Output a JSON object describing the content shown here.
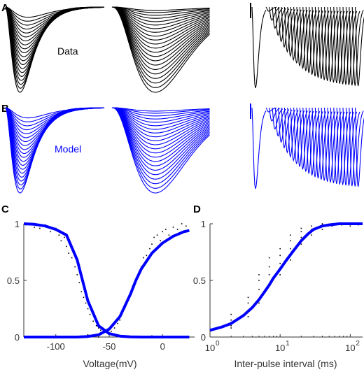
{
  "panel_labels": [
    "A",
    "B",
    "C",
    "D"
  ],
  "colors": {
    "data": "#000000",
    "model": "#0000ff",
    "axis": "#333333"
  },
  "chart_data": [
    {
      "type": "line",
      "panel": "A",
      "annotation": "Data",
      "description_series": [
        {
          "protocol": "activation",
          "min_peak": -0.12,
          "max_peak": -1.0,
          "traces": 20
        },
        {
          "protocol": "inactivation",
          "min_peak": -0.04,
          "max_peak": -1.0,
          "traces": 22
        },
        {
          "protocol": "recovery",
          "pulses": 30,
          "first_peak": -1.0,
          "second_peak_min": -0.05,
          "second_peak_max": -0.95
        }
      ]
    },
    {
      "type": "line",
      "panel": "B",
      "annotation": "Model",
      "description_series": [
        {
          "protocol": "activation",
          "min_peak": -0.12,
          "max_peak": -1.0,
          "traces": 20
        },
        {
          "protocol": "inactivation",
          "min_peak": -0.04,
          "max_peak": -1.0,
          "traces": 22
        },
        {
          "protocol": "recovery",
          "pulses": 30,
          "first_peak": -1.0,
          "second_peak_min": -0.05,
          "second_peak_max": -0.95
        }
      ]
    },
    {
      "type": "scatter",
      "panel": "C",
      "xlabel": "Voltage(mV)",
      "ylabel": "",
      "xlim": [
        -130,
        30
      ],
      "ylim": [
        0,
        1
      ],
      "xticks": [
        -100,
        -50,
        0
      ],
      "xtick_labels": [
        "-100",
        "-50",
        "0"
      ],
      "yticks": [
        0,
        0.5,
        1
      ],
      "ytick_labels": [
        "0",
        "0.5",
        "1"
      ],
      "fit_curves": [
        {
          "kind": "inactivation",
          "v_half": -75,
          "slope": 6.5,
          "x": [
            -130,
            -120,
            -110,
            -100,
            -90,
            -80,
            -75,
            -70,
            -60,
            -50,
            -40,
            -30,
            -20,
            -10,
            0,
            10,
            20,
            25
          ],
          "y": [
            1.0,
            0.995,
            0.98,
            0.95,
            0.9,
            0.68,
            0.5,
            0.32,
            0.1,
            0.03,
            0.008,
            0.002,
            0.0,
            0.0,
            0.0,
            0.0,
            0.0,
            0.0
          ]
        },
        {
          "kind": "activation",
          "v_half": -25,
          "slope": 10,
          "x": [
            -130,
            -100,
            -80,
            -70,
            -60,
            -50,
            -40,
            -30,
            -25,
            -20,
            -10,
            0,
            10,
            20,
            25
          ],
          "y": [
            0.0,
            0.0,
            0.0,
            0.005,
            0.02,
            0.07,
            0.18,
            0.38,
            0.5,
            0.6,
            0.74,
            0.83,
            0.89,
            0.93,
            0.94
          ]
        }
      ],
      "scatter_points": [
        {
          "x": -128,
          "y": 0.99
        },
        {
          "x": -125,
          "y": 1.0
        },
        {
          "x": -120,
          "y": 0.97
        },
        {
          "x": -115,
          "y": 0.96
        },
        {
          "x": -110,
          "y": 0.99
        },
        {
          "x": -105,
          "y": 0.93
        },
        {
          "x": -100,
          "y": 0.96
        },
        {
          "x": -97,
          "y": 0.9
        },
        {
          "x": -95,
          "y": 0.85
        },
        {
          "x": -92,
          "y": 0.88
        },
        {
          "x": -90,
          "y": 0.8
        },
        {
          "x": -88,
          "y": 0.74
        },
        {
          "x": -85,
          "y": 0.7
        },
        {
          "x": -82,
          "y": 0.62
        },
        {
          "x": -80,
          "y": 0.55
        },
        {
          "x": -78,
          "y": 0.48
        },
        {
          "x": -76,
          "y": 0.4
        },
        {
          "x": -74,
          "y": 0.35
        },
        {
          "x": -72,
          "y": 0.3
        },
        {
          "x": -70,
          "y": 0.25
        },
        {
          "x": -68,
          "y": 0.2
        },
        {
          "x": -65,
          "y": 0.14
        },
        {
          "x": -62,
          "y": 0.1
        },
        {
          "x": -60,
          "y": 0.08
        },
        {
          "x": -58,
          "y": 0.06
        },
        {
          "x": -55,
          "y": 0.05
        },
        {
          "x": -52,
          "y": 0.04
        },
        {
          "x": -50,
          "y": 0.03
        },
        {
          "x": -48,
          "y": 0.05
        },
        {
          "x": -45,
          "y": 0.08
        },
        {
          "x": -42,
          "y": 0.12
        },
        {
          "x": -40,
          "y": 0.15
        },
        {
          "x": -38,
          "y": 0.2
        },
        {
          "x": -35,
          "y": 0.26
        },
        {
          "x": -32,
          "y": 0.33
        },
        {
          "x": -30,
          "y": 0.38
        },
        {
          "x": -28,
          "y": 0.45
        },
        {
          "x": -25,
          "y": 0.5
        },
        {
          "x": -22,
          "y": 0.58
        },
        {
          "x": -20,
          "y": 0.62
        },
        {
          "x": -18,
          "y": 0.7
        },
        {
          "x": -15,
          "y": 0.72
        },
        {
          "x": -12,
          "y": 0.78
        },
        {
          "x": -10,
          "y": 0.82
        },
        {
          "x": -8,
          "y": 0.88
        },
        {
          "x": -5,
          "y": 0.9
        },
        {
          "x": -2,
          "y": 0.85
        },
        {
          "x": 0,
          "y": 0.93
        },
        {
          "x": 3,
          "y": 0.95
        },
        {
          "x": 6,
          "y": 0.9
        },
        {
          "x": 10,
          "y": 0.97
        },
        {
          "x": 14,
          "y": 0.95
        },
        {
          "x": 18,
          "y": 1.0
        },
        {
          "x": 22,
          "y": 0.98
        },
        {
          "x": -70,
          "y": 0.02
        },
        {
          "x": -60,
          "y": 0.0
        },
        {
          "x": -40,
          "y": 0.01
        },
        {
          "x": -30,
          "y": 0.0
        },
        {
          "x": -20,
          "y": 0.0
        },
        {
          "x": -10,
          "y": 0.01
        }
      ],
      "grid": false
    },
    {
      "type": "scatter",
      "panel": "D",
      "xlabel": "Inter-pulse interval (ms)",
      "ylabel": "",
      "xscale": "log",
      "xlim": [
        1,
        150
      ],
      "ylim": [
        0,
        1
      ],
      "xticks": [
        1,
        10,
        100
      ],
      "xtick_labels": [
        "10",
        "10",
        "10"
      ],
      "xtick_exponents": [
        "0",
        "1",
        "2"
      ],
      "yticks": [
        0,
        0.5,
        1
      ],
      "ytick_labels": [
        "0",
        "0.5",
        "1"
      ],
      "fit_curve": {
        "x": [
          1,
          1.5,
          2,
          3,
          4,
          5,
          6,
          7,
          8,
          10,
          12,
          15,
          20,
          25,
          30,
          40,
          50,
          70,
          100,
          150
        ],
        "y": [
          0.06,
          0.09,
          0.12,
          0.19,
          0.26,
          0.33,
          0.4,
          0.46,
          0.52,
          0.6,
          0.67,
          0.75,
          0.85,
          0.91,
          0.95,
          0.98,
          0.99,
          1.0,
          1.0,
          1.0
        ]
      },
      "scatter_points": [
        {
          "x": 2,
          "y": 0.1
        },
        {
          "x": 2,
          "y": 0.15
        },
        {
          "x": 2,
          "y": 0.2
        },
        {
          "x": 2,
          "y": 0.08
        },
        {
          "x": 3.5,
          "y": 0.22
        },
        {
          "x": 3.5,
          "y": 0.3
        },
        {
          "x": 3.5,
          "y": 0.35
        },
        {
          "x": 3.5,
          "y": 0.18
        },
        {
          "x": 5,
          "y": 0.3
        },
        {
          "x": 5,
          "y": 0.42
        },
        {
          "x": 5,
          "y": 0.5
        },
        {
          "x": 5,
          "y": 0.55
        },
        {
          "x": 7,
          "y": 0.45
        },
        {
          "x": 7,
          "y": 0.55
        },
        {
          "x": 7,
          "y": 0.62
        },
        {
          "x": 7,
          "y": 0.7
        },
        {
          "x": 10,
          "y": 0.55
        },
        {
          "x": 10,
          "y": 0.65
        },
        {
          "x": 10,
          "y": 0.72
        },
        {
          "x": 10,
          "y": 0.78
        },
        {
          "x": 14,
          "y": 0.68
        },
        {
          "x": 14,
          "y": 0.78
        },
        {
          "x": 14,
          "y": 0.85
        },
        {
          "x": 14,
          "y": 0.9
        },
        {
          "x": 20,
          "y": 0.82
        },
        {
          "x": 20,
          "y": 0.88
        },
        {
          "x": 20,
          "y": 0.93
        },
        {
          "x": 20,
          "y": 0.96
        },
        {
          "x": 28,
          "y": 0.9
        },
        {
          "x": 28,
          "y": 0.95
        },
        {
          "x": 28,
          "y": 0.98
        },
        {
          "x": 40,
          "y": 0.95
        },
        {
          "x": 40,
          "y": 0.99
        },
        {
          "x": 40,
          "y": 1.0
        },
        {
          "x": 55,
          "y": 0.98
        },
        {
          "x": 55,
          "y": 1.0
        },
        {
          "x": 75,
          "y": 0.99
        },
        {
          "x": 75,
          "y": 1.0
        },
        {
          "x": 100,
          "y": 0.98
        },
        {
          "x": 100,
          "y": 1.0
        },
        {
          "x": 130,
          "y": 1.0
        },
        {
          "x": 130,
          "y": 0.99
        }
      ],
      "grid": false
    }
  ]
}
